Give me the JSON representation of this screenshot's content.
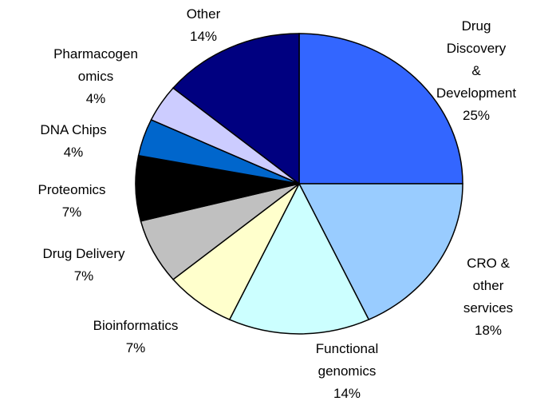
{
  "chart_data": {
    "type": "pie",
    "categories": [
      "Drug Discovery\n& Development",
      "CRO & other\nservices",
      "Functional\ngenomics",
      "Bioinformatics",
      "Drug Delivery",
      "Proteomics",
      "DNA Chips",
      "Pharmacogen\nomics",
      "Other"
    ],
    "values": [
      25,
      18,
      14,
      7,
      7,
      7,
      4,
      4,
      14
    ],
    "value_labels": [
      "25%",
      "18%",
      "14%",
      "7%",
      "7%",
      "7%",
      "4%",
      "4%",
      "14%"
    ],
    "colors": [
      "#3366ff",
      "#99ccff",
      "#ccffff",
      "#ffffcc",
      "#c0c0c0",
      "#000000",
      "#0066cc",
      "#ccccff",
      "#000080"
    ]
  }
}
